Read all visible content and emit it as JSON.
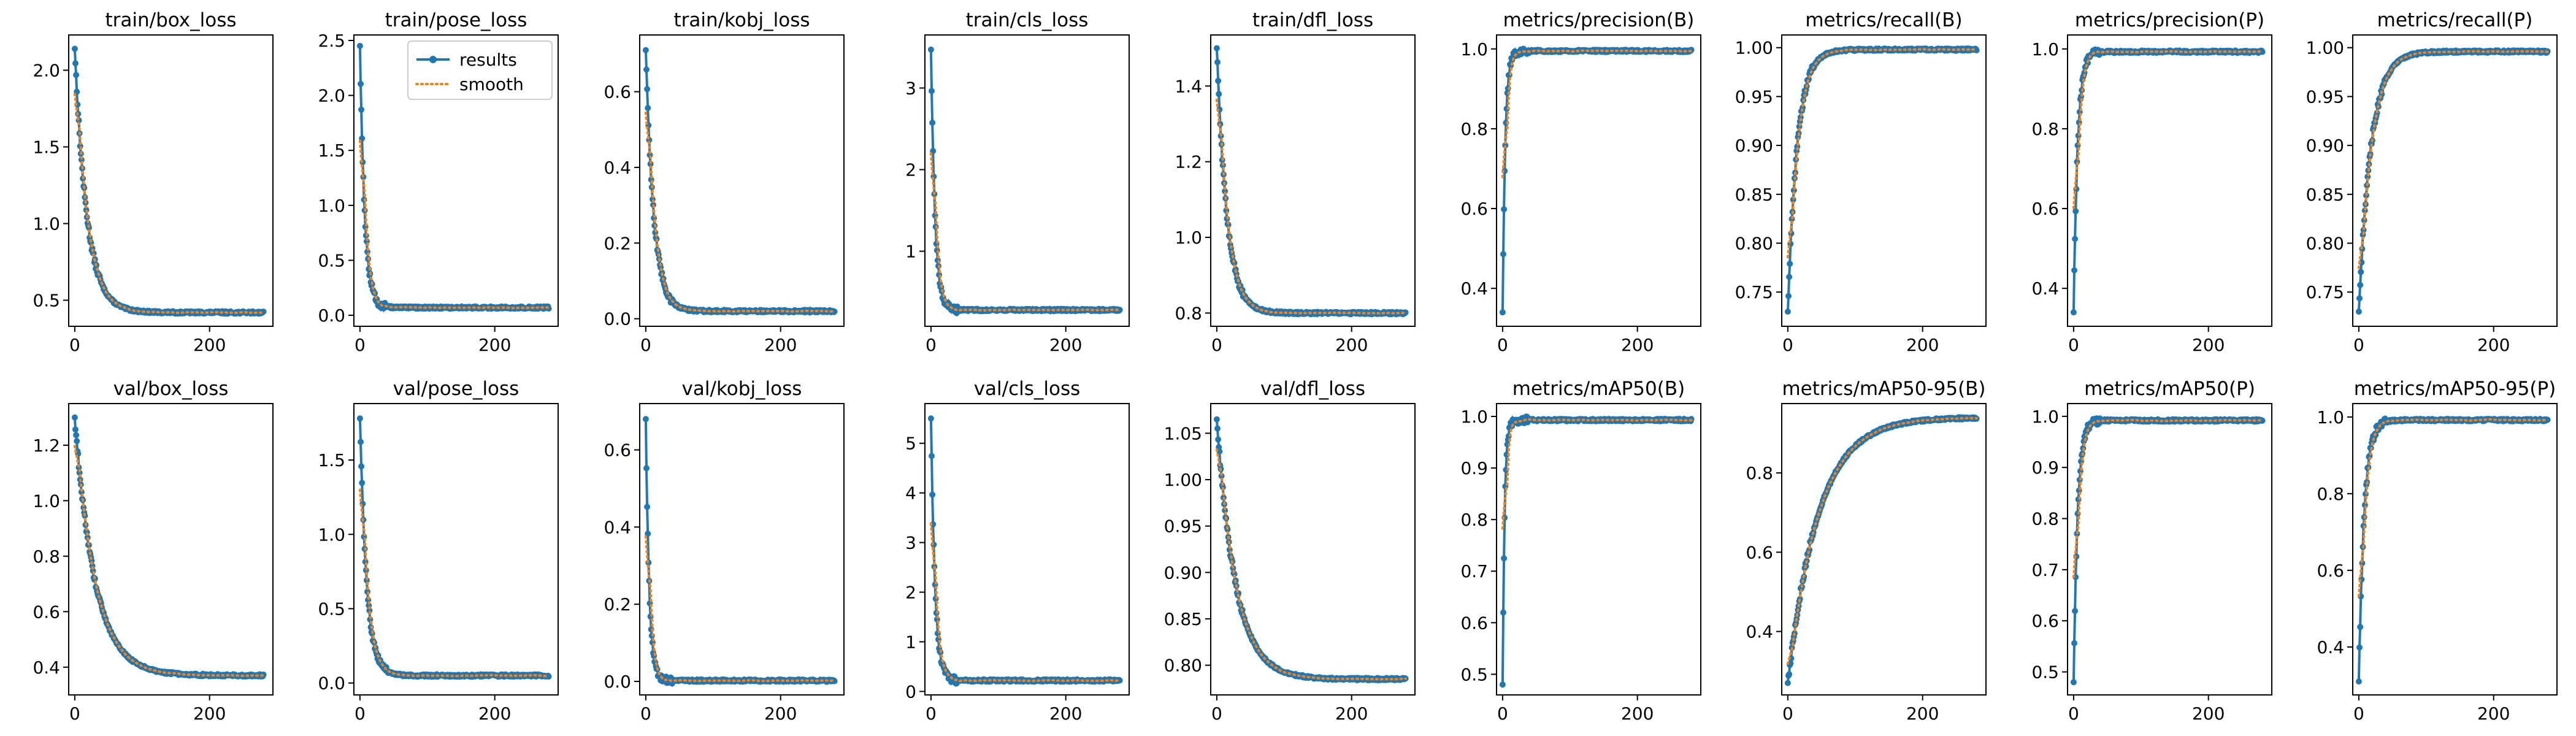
{
  "colors": {
    "results": "#1f77b4",
    "smooth": "#ff7f0e",
    "axes": "#000000",
    "background": "#ffffff"
  },
  "legend": {
    "results_label": "results",
    "smooth_label": "smooth",
    "placement": "upper-right of train/pose_loss"
  },
  "chart_data": [
    {
      "type": "line",
      "title": "train/box_loss",
      "xlim": [
        -9,
        294
      ],
      "ylim": [
        0.33,
        2.23
      ],
      "xticks": [
        0,
        200
      ],
      "yticks": [
        0.5,
        1.0,
        1.5,
        2.0
      ],
      "ytick_labels": [
        "0.5",
        "1.0",
        "1.5",
        "2.0"
      ],
      "curve": {
        "kind": "decay",
        "start": 2.14,
        "end": 0.42,
        "rate": 18
      }
    },
    {
      "type": "line",
      "title": "train/pose_loss",
      "xlim": [
        -9,
        294
      ],
      "ylim": [
        -0.1,
        2.55
      ],
      "xticks": [
        0,
        200
      ],
      "yticks": [
        0.0,
        0.5,
        1.0,
        1.5,
        2.0,
        2.5
      ],
      "ytick_labels": [
        "0.0",
        "0.5",
        "1.0",
        "1.5",
        "2.0",
        "2.5"
      ],
      "curve": {
        "kind": "decay",
        "start": 2.45,
        "end": 0.07,
        "rate": 7
      },
      "legend": true
    },
    {
      "type": "line",
      "title": "train/kobj_loss",
      "xlim": [
        -9,
        294
      ],
      "ylim": [
        -0.02,
        0.75
      ],
      "xticks": [
        0,
        200
      ],
      "yticks": [
        0.0,
        0.2,
        0.4,
        0.6
      ],
      "ytick_labels": [
        "0.0",
        "0.2",
        "0.4",
        "0.6"
      ],
      "curve": {
        "kind": "decay",
        "start": 0.71,
        "end": 0.02,
        "rate": 12
      }
    },
    {
      "type": "line",
      "title": "train/cls_loss",
      "xlim": [
        -9,
        294
      ],
      "ylim": [
        0.08,
        3.65
      ],
      "xticks": [
        0,
        200
      ],
      "yticks": [
        1,
        2,
        3
      ],
      "ytick_labels": [
        "1",
        "2",
        "3"
      ],
      "curve": {
        "kind": "decay",
        "start": 3.47,
        "end": 0.28,
        "rate": 6
      }
    },
    {
      "type": "line",
      "title": "train/dfl_loss",
      "xlim": [
        -9,
        294
      ],
      "ylim": [
        0.765,
        1.535
      ],
      "xticks": [
        0,
        200
      ],
      "yticks": [
        0.8,
        1.0,
        1.2,
        1.4
      ],
      "ytick_labels": [
        "0.8",
        "1.0",
        "1.2",
        "1.4"
      ],
      "curve": {
        "kind": "decay",
        "start": 1.5,
        "end": 0.8,
        "rate": 15
      }
    },
    {
      "type": "line",
      "title": "metrics/precision(B)",
      "xlim": [
        -9,
        294
      ],
      "ylim": [
        0.305,
        1.035
      ],
      "xticks": [
        0,
        200
      ],
      "yticks": [
        0.4,
        0.6,
        0.8,
        1.0
      ],
      "ytick_labels": [
        "0.4",
        "0.6",
        "0.8",
        "1.0"
      ],
      "curve": {
        "kind": "rise",
        "start": 0.34,
        "end": 0.995,
        "rate": 4
      }
    },
    {
      "type": "line",
      "title": "metrics/recall(B)",
      "xlim": [
        -9,
        294
      ],
      "ylim": [
        0.715,
        1.013
      ],
      "xticks": [
        0,
        200
      ],
      "yticks": [
        0.75,
        0.8,
        0.85,
        0.9,
        0.95,
        1.0
      ],
      "ytick_labels": [
        "0.75",
        "0.80",
        "0.85",
        "0.90",
        "0.95",
        "1.00"
      ],
      "curve": {
        "kind": "rise",
        "start": 0.73,
        "end": 0.998,
        "rate": 14
      }
    },
    {
      "type": "line",
      "title": "metrics/precision(P)",
      "xlim": [
        -9,
        294
      ],
      "ylim": [
        0.305,
        1.035
      ],
      "xticks": [
        0,
        200
      ],
      "yticks": [
        0.4,
        0.6,
        0.8,
        1.0
      ],
      "ytick_labels": [
        "0.4",
        "0.6",
        "0.8",
        "1.0"
      ],
      "curve": {
        "kind": "rise",
        "start": 0.34,
        "end": 0.993,
        "rate": 6
      }
    },
    {
      "type": "line",
      "title": "metrics/recall(P)",
      "xlim": [
        -9,
        294
      ],
      "ylim": [
        0.715,
        1.013
      ],
      "xticks": [
        0,
        200
      ],
      "yticks": [
        0.75,
        0.8,
        0.85,
        0.9,
        0.95,
        1.0
      ],
      "ytick_labels": [
        "0.75",
        "0.80",
        "0.85",
        "0.90",
        "0.95",
        "1.00"
      ],
      "curve": {
        "kind": "rise",
        "start": 0.73,
        "end": 0.996,
        "rate": 18
      }
    },
    {
      "type": "line",
      "title": "val/box_loss",
      "xlim": [
        -9,
        294
      ],
      "ylim": [
        0.3,
        1.35
      ],
      "xticks": [
        0,
        200
      ],
      "yticks": [
        0.4,
        0.6,
        0.8,
        1.0,
        1.2
      ],
      "ytick_labels": [
        "0.4",
        "0.6",
        "0.8",
        "1.0",
        "1.2"
      ],
      "curve": {
        "kind": "decay",
        "start": 1.3,
        "end": 0.37,
        "rate": 30
      }
    },
    {
      "type": "line",
      "title": "val/pose_loss",
      "xlim": [
        -9,
        294
      ],
      "ylim": [
        -0.08,
        1.88
      ],
      "xticks": [
        0,
        200
      ],
      "yticks": [
        0.0,
        0.5,
        1.0,
        1.5
      ],
      "ytick_labels": [
        "0.0",
        "0.5",
        "1.0",
        "1.5"
      ],
      "curve": {
        "kind": "decay",
        "start": 1.78,
        "end": 0.05,
        "rate": 10
      }
    },
    {
      "type": "line",
      "title": "val/kobj_loss",
      "xlim": [
        -9,
        294
      ],
      "ylim": [
        -0.035,
        0.72
      ],
      "xticks": [
        0,
        200
      ],
      "yticks": [
        0.0,
        0.2,
        0.4,
        0.6
      ],
      "ytick_labels": [
        "0.0",
        "0.2",
        "0.4",
        "0.6"
      ],
      "curve": {
        "kind": "decay",
        "start": 0.68,
        "end": 0.002,
        "rate": 5
      }
    },
    {
      "type": "line",
      "title": "val/cls_loss",
      "xlim": [
        -9,
        294
      ],
      "ylim": [
        -0.07,
        5.8
      ],
      "xticks": [
        0,
        200
      ],
      "yticks": [
        0,
        1,
        2,
        3,
        4,
        5
      ],
      "ytick_labels": [
        "0",
        "1",
        "2",
        "3",
        "4",
        "5"
      ],
      "curve": {
        "kind": "decay",
        "start": 5.5,
        "end": 0.22,
        "rate": 6
      }
    },
    {
      "type": "line",
      "title": "val/dfl_loss",
      "xlim": [
        -9,
        294
      ],
      "ylim": [
        0.768,
        1.082
      ],
      "xticks": [
        0,
        200
      ],
      "yticks": [
        0.8,
        0.85,
        0.9,
        0.95,
        1.0,
        1.05
      ],
      "ytick_labels": [
        "0.80",
        "0.85",
        "0.90",
        "0.95",
        "1.00",
        "1.05"
      ],
      "curve": {
        "kind": "decay",
        "start": 1.065,
        "end": 0.785,
        "rate": 28
      }
    },
    {
      "type": "line",
      "title": "metrics/mAP50(B)",
      "xlim": [
        -9,
        294
      ],
      "ylim": [
        0.46,
        1.025
      ],
      "xticks": [
        0,
        200
      ],
      "yticks": [
        0.5,
        0.6,
        0.7,
        0.8,
        0.9,
        1.0
      ],
      "ytick_labels": [
        "0.5",
        "0.6",
        "0.7",
        "0.8",
        "0.9",
        "1.0"
      ],
      "curve": {
        "kind": "rise",
        "start": 0.48,
        "end": 0.993,
        "rate": 3
      }
    },
    {
      "type": "line",
      "title": "metrics/mAP50-95(B)",
      "xlim": [
        -9,
        294
      ],
      "ylim": [
        0.24,
        0.975
      ],
      "xticks": [
        0,
        200
      ],
      "yticks": [
        0.4,
        0.6,
        0.8
      ],
      "ytick_labels": [
        "0.4",
        "0.6",
        "0.8"
      ],
      "curve": {
        "kind": "rise",
        "start": 0.27,
        "end": 0.94,
        "rate": 45
      }
    },
    {
      "type": "line",
      "title": "metrics/mAP50(P)",
      "xlim": [
        -9,
        294
      ],
      "ylim": [
        0.455,
        1.025
      ],
      "xticks": [
        0,
        200
      ],
      "yticks": [
        0.5,
        0.6,
        0.7,
        0.8,
        0.9,
        1.0
      ],
      "ytick_labels": [
        "0.5",
        "0.6",
        "0.7",
        "0.8",
        "0.9",
        "1.0"
      ],
      "curve": {
        "kind": "rise",
        "start": 0.48,
        "end": 0.992,
        "rate": 6
      }
    },
    {
      "type": "line",
      "title": "metrics/mAP50-95(P)",
      "xlim": [
        -9,
        294
      ],
      "ylim": [
        0.275,
        1.035
      ],
      "xticks": [
        0,
        200
      ],
      "yticks": [
        0.4,
        0.6,
        0.8,
        1.0
      ],
      "ytick_labels": [
        "0.4",
        "0.6",
        "0.8",
        "1.0"
      ],
      "curve": {
        "kind": "rise",
        "start": 0.31,
        "end": 0.992,
        "rate": 8
      }
    }
  ]
}
